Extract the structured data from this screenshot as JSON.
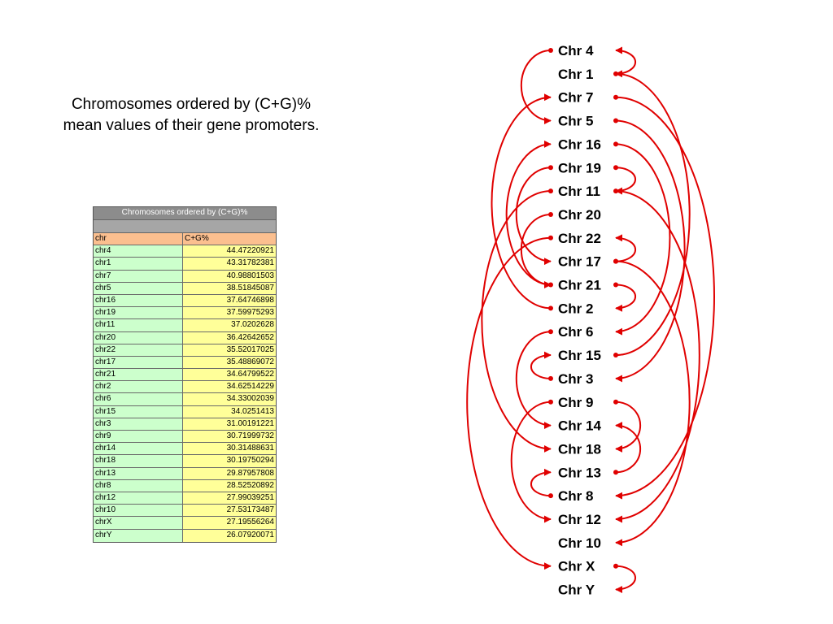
{
  "caption": {
    "line1": "Chromosomes ordered by (C+G)%",
    "line2": "mean values of their gene promoters."
  },
  "table": {
    "title": "Chromosomes ordered by (C+G)%",
    "col_chr": "chr",
    "col_cg": "C+G%",
    "rows": [
      {
        "chr": "chr4",
        "cg": "44.47220921"
      },
      {
        "chr": "chr1",
        "cg": "43.31782381"
      },
      {
        "chr": "chr7",
        "cg": "40.98801503"
      },
      {
        "chr": "chr5",
        "cg": "38.51845087"
      },
      {
        "chr": "chr16",
        "cg": "37.64746898"
      },
      {
        "chr": "chr19",
        "cg": "37.59975293"
      },
      {
        "chr": "chr11",
        "cg": "37.0202628"
      },
      {
        "chr": "chr20",
        "cg": "36.42642652"
      },
      {
        "chr": "chr22",
        "cg": "35.52017025"
      },
      {
        "chr": "chr17",
        "cg": "35.48869072"
      },
      {
        "chr": "chr21",
        "cg": "34.64799522"
      },
      {
        "chr": "chr2",
        "cg": "34.62514229"
      },
      {
        "chr": "chr6",
        "cg": "34.33002039"
      },
      {
        "chr": "chr15",
        "cg": "34.0251413"
      },
      {
        "chr": "chr3",
        "cg": "31.00191221"
      },
      {
        "chr": "chr9",
        "cg": "30.71999732"
      },
      {
        "chr": "chr14",
        "cg": "30.31488631"
      },
      {
        "chr": "chr18",
        "cg": "30.19750294"
      },
      {
        "chr": "chr13",
        "cg": "29.87957808"
      },
      {
        "chr": "chr8",
        "cg": "28.52520892"
      },
      {
        "chr": "chr12",
        "cg": "27.99039251"
      },
      {
        "chr": "chr10",
        "cg": "27.53173487"
      },
      {
        "chr": "chrX",
        "cg": "27.19556264"
      },
      {
        "chr": "chrY",
        "cg": "26.07920071"
      }
    ]
  },
  "diagram": {
    "arrow_color": "#e00000",
    "labels": [
      "Chr 4",
      "Chr 1",
      "Chr 7",
      "Chr 5",
      "Chr 16",
      "Chr 19",
      "Chr 11",
      "Chr 20",
      "Chr 22",
      "Chr 17",
      "Chr 21",
      "Chr 2",
      "Chr 6",
      "Chr 15",
      "Chr 3",
      "Chr 9",
      "Chr 14",
      "Chr 18",
      "Chr 13",
      "Chr 8",
      "Chr 12",
      "Chr 10",
      "Chr X",
      "Chr Y"
    ],
    "arcs": [
      {
        "from": "Chr 4",
        "to": "Chr 5",
        "side": "left"
      },
      {
        "from": "Chr 5",
        "to": "Chr 3",
        "side": "right"
      },
      {
        "from": "Chr 3",
        "to": "Chr 15",
        "side": "left"
      },
      {
        "from": "Chr 15",
        "to": "Chr 1",
        "side": "right"
      },
      {
        "from": "Chr 1",
        "to": "Chr 4",
        "side": "right"
      },
      {
        "from": "Chr 7",
        "to": "Chr 8",
        "side": "right"
      },
      {
        "from": "Chr 2",
        "to": "Chr 7",
        "side": "left"
      },
      {
        "from": "Chr 21",
        "to": "Chr 16",
        "side": "left"
      },
      {
        "from": "Chr 16",
        "to": "Chr 6",
        "side": "right"
      },
      {
        "from": "Chr 19",
        "to": "Chr 17",
        "side": "left"
      },
      {
        "from": "Chr 19",
        "to": "Chr 11",
        "side": "right"
      },
      {
        "from": "Chr 11",
        "to": "Chr 12",
        "side": "right"
      },
      {
        "from": "Chr 11",
        "to": "Chr 18",
        "side": "left"
      },
      {
        "from": "Chr 20",
        "to": "Chr 21",
        "side": "left"
      },
      {
        "from": "Chr 22",
        "to": "Chr X",
        "side": "left"
      },
      {
        "from": "Chr 17",
        "to": "Chr 22",
        "side": "right"
      },
      {
        "from": "Chr 17",
        "to": "Chr 10",
        "side": "right"
      },
      {
        "from": "Chr 21",
        "to": "Chr 2",
        "side": "right"
      },
      {
        "from": "Chr 6",
        "to": "Chr 14",
        "side": "left"
      },
      {
        "from": "Chr 9",
        "to": "Chr 12",
        "side": "left"
      },
      {
        "from": "Chr 9",
        "to": "Chr 18",
        "side": "right"
      },
      {
        "from": "Chr 8",
        "to": "Chr 13",
        "side": "left"
      },
      {
        "from": "Chr 13",
        "to": "Chr 14",
        "side": "right"
      },
      {
        "from": "Chr X",
        "to": "Chr Y",
        "side": "right"
      }
    ]
  }
}
